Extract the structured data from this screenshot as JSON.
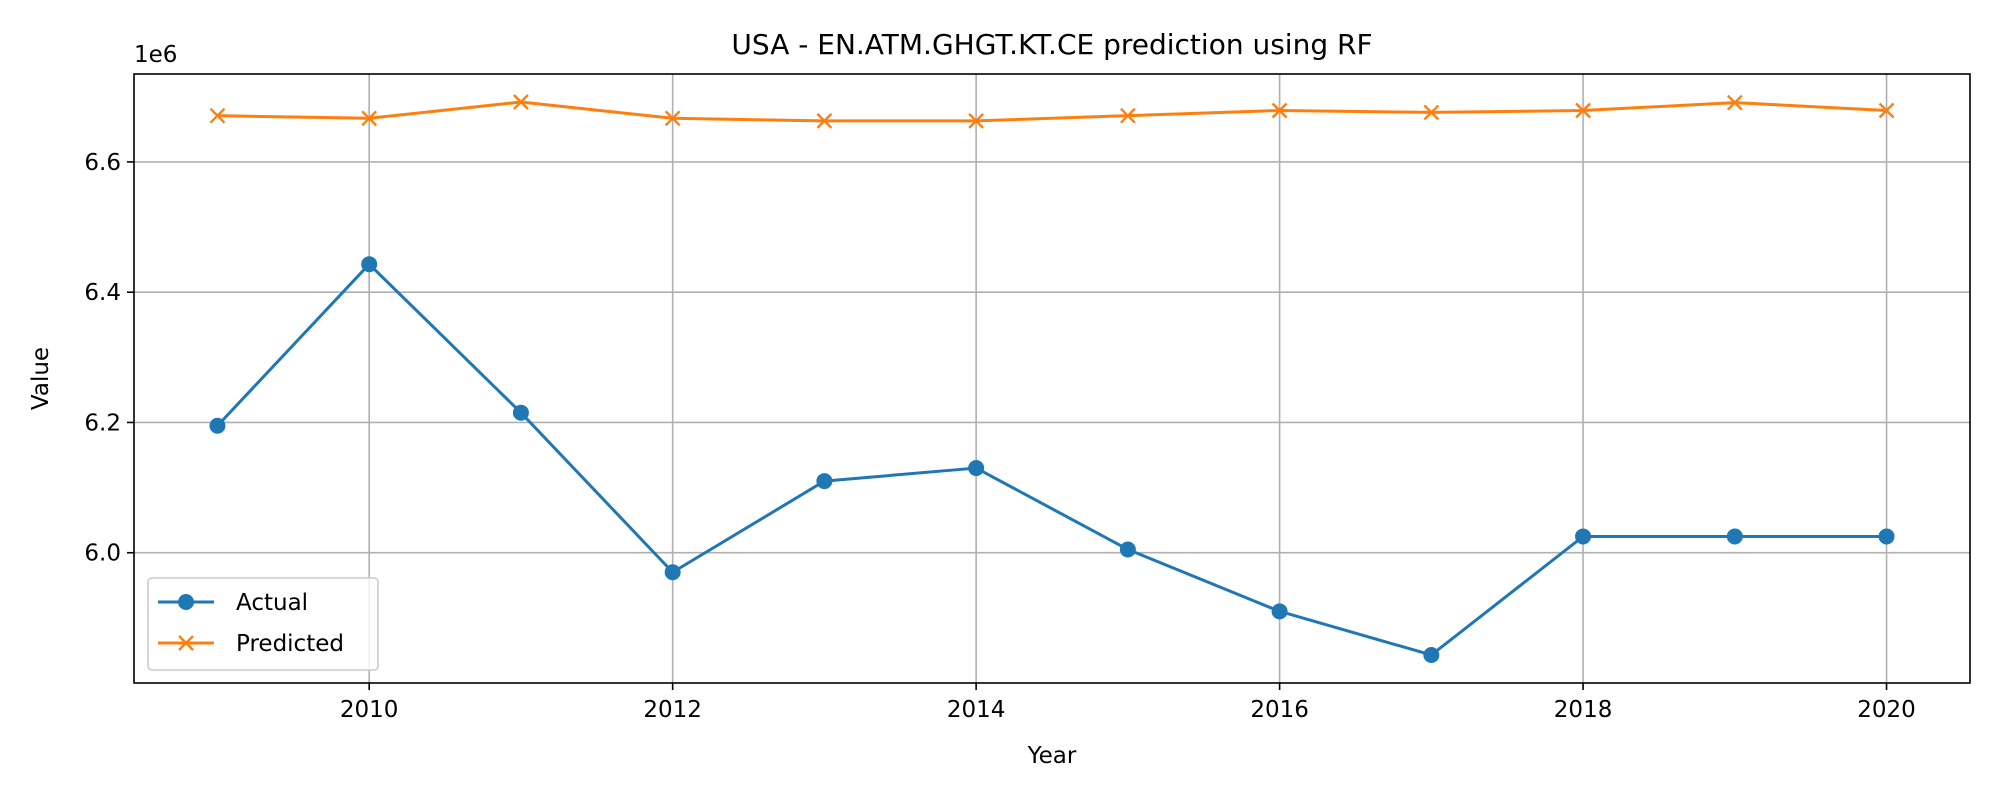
{
  "chart_data": {
    "type": "line",
    "title": "USA - EN.ATM.GHGT.KT.CE prediction using RF",
    "xlabel": "Year",
    "ylabel": "Value",
    "y_offset_label": "1e6",
    "xlim": [
      2008.45,
      2020.55
    ],
    "ylim": [
      5.8,
      6.735
    ],
    "x_ticks": [
      2010,
      2012,
      2014,
      2016,
      2018,
      2020
    ],
    "y_ticks": [
      6.0,
      6.2,
      6.4,
      6.6
    ],
    "y_tick_labels": [
      "6.0",
      "6.2",
      "6.4",
      "6.6"
    ],
    "grid": true,
    "legend_position": "lower-left",
    "x": [
      2009,
      2010,
      2011,
      2012,
      2013,
      2014,
      2015,
      2016,
      2017,
      2018,
      2019,
      2020
    ],
    "series": [
      {
        "name": "Actual",
        "color": "#1f77b4",
        "marker": "circle",
        "values": [
          6.195,
          6.443,
          6.215,
          5.97,
          6.11,
          6.13,
          6.005,
          5.91,
          5.843,
          6.025,
          6.025,
          6.025
        ]
      },
      {
        "name": "Predicted",
        "color": "#ff7f0e",
        "marker": "x",
        "values": [
          6.671,
          6.667,
          6.692,
          6.667,
          6.663,
          6.663,
          6.671,
          6.679,
          6.676,
          6.679,
          6.691,
          6.679
        ]
      }
    ]
  }
}
